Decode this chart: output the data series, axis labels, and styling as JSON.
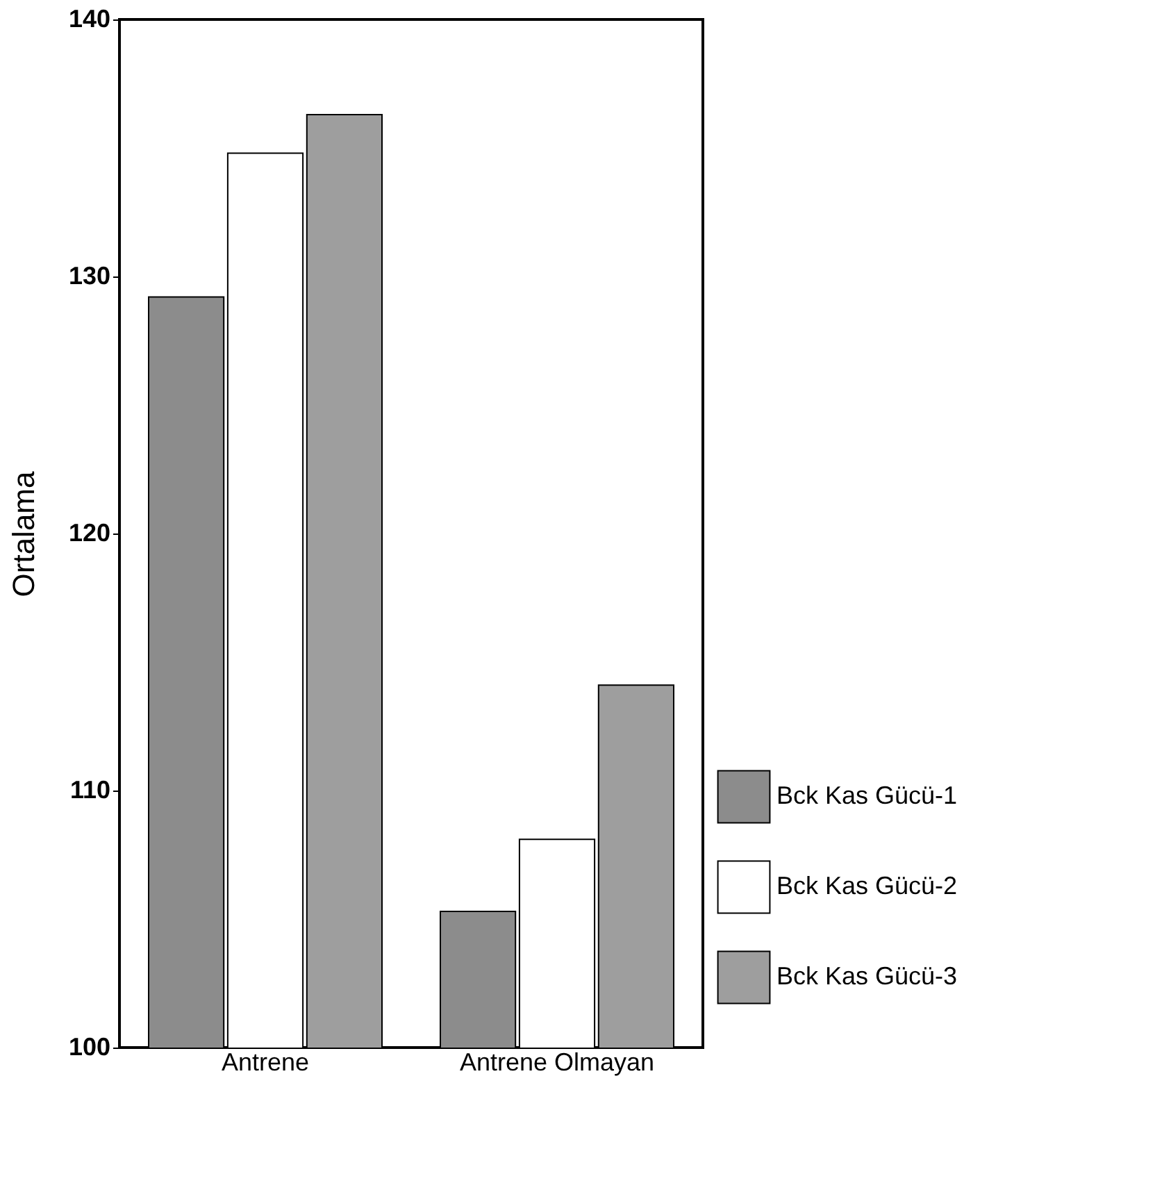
{
  "chart_data": {
    "type": "bar",
    "ylabel": "Ortalama",
    "categories": [
      "Antrene",
      "Antrene Olmayan"
    ],
    "series": [
      {
        "name": "Bck Kas Gücü-1",
        "color": "#8c8c8c",
        "values": [
          129.2,
          105.3
        ]
      },
      {
        "name": "Bck Kas Gücü-2",
        "color": "#ffffff",
        "values": [
          134.8,
          108.1
        ]
      },
      {
        "name": "Bck Kas Gücü-3",
        "color": "#9e9e9e",
        "values": [
          136.3,
          114.1
        ]
      }
    ],
    "ylim": [
      100,
      140
    ],
    "yticks": [
      100,
      110,
      120,
      130,
      140
    ],
    "grid": false,
    "legend": "bottom right"
  }
}
